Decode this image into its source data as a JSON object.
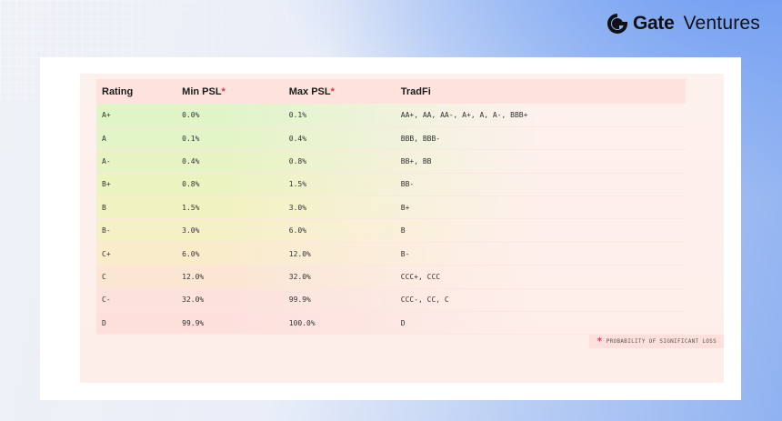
{
  "brand": {
    "name": "Gate",
    "suffix": "Ventures"
  },
  "table": {
    "headers": [
      {
        "label": "Rating",
        "asterisk": ""
      },
      {
        "label": "Min PSL",
        "asterisk": "*"
      },
      {
        "label": "Max PSL",
        "asterisk": "*"
      },
      {
        "label": "TradFi",
        "asterisk": ""
      }
    ],
    "rows": [
      {
        "rating": "A+",
        "min": "0.0%",
        "max": "0.1%",
        "tradfi": "AA+, AA, AA-, A+, A, A-, BBB+",
        "tint": "#dff5c8"
      },
      {
        "rating": "A",
        "min": "0.1%",
        "max": "0.4%",
        "tradfi": "BBB, BBB-",
        "tint": "#e2f5c6"
      },
      {
        "rating": "A-",
        "min": "0.4%",
        "max": "0.8%",
        "tradfi": "BB+, BB",
        "tint": "#e6f4c3"
      },
      {
        "rating": "B+",
        "min": "0.8%",
        "max": "1.5%",
        "tradfi": "BB-",
        "tint": "#ebf3c1"
      },
      {
        "rating": "B",
        "min": "1.5%",
        "max": "3.0%",
        "tradfi": "B+",
        "tint": "#f1f2c2"
      },
      {
        "rating": "B-",
        "min": "3.0%",
        "max": "6.0%",
        "tradfi": "B",
        "tint": "#f6f0c6"
      },
      {
        "rating": "C+",
        "min": "6.0%",
        "max": "12.0%",
        "tradfi": "B-",
        "tint": "#f9eccb"
      },
      {
        "rating": "C",
        "min": "12.0%",
        "max": "32.0%",
        "tradfi": "CCC+, CCC",
        "tint": "#fbe6d3"
      },
      {
        "rating": "C-",
        "min": "32.0%",
        "max": "99.9%",
        "tradfi": "CCC-, CC, C",
        "tint": "#fce2da"
      },
      {
        "rating": "D",
        "min": "99.9%",
        "max": "100.0%",
        "tradfi": "D",
        "tint": "#fde0dc"
      }
    ]
  },
  "footnote": {
    "asterisk": "*",
    "text": "PROBABILITY OF SIGNIFICANT LOSS"
  },
  "colors": {
    "accent": "#e0344f",
    "header_bg": "#fde2de"
  }
}
